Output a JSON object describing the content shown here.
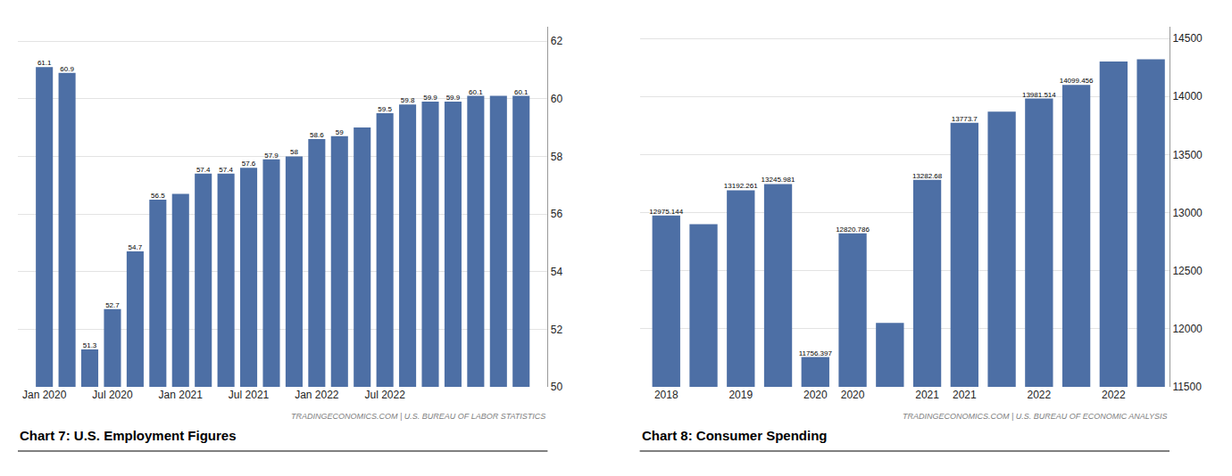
{
  "chart_data": [
    {
      "type": "bar",
      "title": "Chart 7: U.S. Employment Figures",
      "annotations": [
        "TRADINGECONOMICS.COM | U.S. BUREAU OF LABOR STATISTICS"
      ],
      "categories": [
        "Jan 2020",
        null,
        null,
        "Jul 2020",
        null,
        null,
        "Jan 2021",
        null,
        null,
        "Jul 2021",
        null,
        null,
        "Jan 2022",
        null,
        null,
        "Jul 2022",
        null,
        null,
        null,
        null,
        null,
        null
      ],
      "values": [
        61.1,
        60.9,
        51.3,
        52.7,
        54.7,
        56.5,
        56.7,
        57.4,
        57.4,
        57.6,
        57.9,
        58.0,
        58.6,
        58.7,
        59.0,
        59.5,
        59.8,
        59.9,
        59.9,
        60.1,
        60.1,
        60.1
      ],
      "value_labels": [
        "61.1",
        "60.9",
        "51.3",
        "52.7",
        "54.7",
        "56.5",
        null,
        "57.4",
        "57.4",
        "57.6",
        "57.9",
        "58",
        "58.6",
        "59",
        null,
        "59.5",
        "59.8",
        "59.9",
        "59.9",
        "60.1",
        null,
        "60.1"
      ],
      "color": "#4d6fa5",
      "ylim": [
        50,
        62.5
      ],
      "yticks": [
        50,
        52,
        54,
        56,
        58,
        60,
        62
      ],
      "grid": true,
      "data_labels": true
    },
    {
      "type": "bar",
      "title": "Chart 8: Consumer Spending",
      "annotations": [
        "TRADINGECONOMICS.COM | U.S. BUREAU OF ECONOMIC ANALYSIS"
      ],
      "categories": [
        "2018",
        null,
        "2019",
        null,
        "2020",
        "2020",
        null,
        "2021",
        "2021",
        null,
        "2022",
        null,
        "2022",
        null
      ],
      "values": [
        12975.144,
        12900.0,
        13192.261,
        13245.981,
        11756.397,
        12820.786,
        12050.0,
        13282.68,
        13773.7,
        13870.0,
        13981.514,
        14099.456,
        14300.0,
        14320.0
      ],
      "value_labels": [
        "12975.144",
        null,
        "13192.261",
        "13245.981",
        "11756.397",
        "12820.786",
        null,
        "13282.68",
        "13773.7",
        null,
        "13981.514",
        "14099.456",
        null,
        null
      ],
      "color": "#4d6fa5",
      "ylim": [
        11500,
        14600
      ],
      "yticks": [
        11500,
        12000,
        12500,
        13000,
        13500,
        14000,
        14500
      ],
      "grid": true,
      "data_labels": true
    }
  ]
}
